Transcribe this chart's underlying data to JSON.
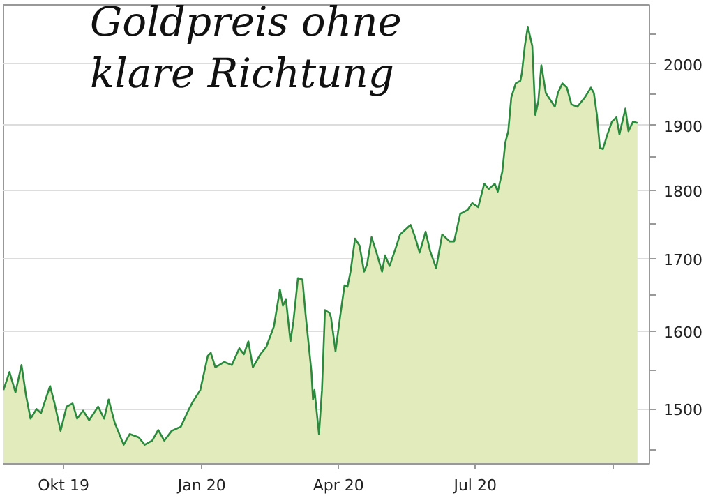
{
  "chart_data": {
    "type": "area",
    "title": "Goldpreis ohne klare Richtung",
    "log": true,
    "grid": "y",
    "xlim": [
      "2019-08-22",
      "2020-10-25"
    ],
    "ylim": [
      1433,
      2101
    ],
    "xticks": [
      {
        "value": "2019-10-01",
        "label": "Okt 19"
      },
      {
        "value": "2020-01-01",
        "label": "Jan 20"
      },
      {
        "value": "2020-04-01",
        "label": "Apr 20"
      },
      {
        "value": "2020-07-01",
        "label": "Jul 20"
      },
      {
        "value": "2020-10-01",
        "label": null
      }
    ],
    "yticks": [
      {
        "value": 1450,
        "label": null
      },
      1500,
      {
        "value": 1550,
        "label": null
      },
      1600,
      {
        "value": 1650,
        "label": null
      },
      1700,
      {
        "value": 1750,
        "label": null
      },
      1800,
      {
        "value": 1850,
        "label": null
      },
      1900,
      {
        "value": 1950,
        "label": null
      },
      2000,
      {
        "value": 2050,
        "label": null
      }
    ],
    "series": [
      {
        "color": "#2b8a3e",
        "x": [
          "2019-08-22",
          "2019-08-26",
          "2019-08-30",
          "2019-09-03",
          "2019-09-06",
          "2019-09-09",
          "2019-09-13",
          "2019-09-16",
          "2019-09-19",
          "2019-09-22",
          "2019-09-25",
          "2019-09-29",
          "2019-10-03",
          "2019-10-07",
          "2019-10-10",
          "2019-10-14",
          "2019-10-18",
          "2019-10-24",
          "2019-10-28",
          "2019-10-31",
          "2019-11-04",
          "2019-11-10",
          "2019-11-14",
          "2019-11-20",
          "2019-11-24",
          "2019-11-29",
          "2019-12-03",
          "2019-12-07",
          "2019-12-12",
          "2019-12-18",
          "2019-12-23",
          "2019-12-26",
          "2019-12-31",
          "2020-01-05",
          "2020-01-07",
          "2020-01-10",
          "2020-01-16",
          "2020-01-21",
          "2020-01-26",
          "2020-01-29",
          "2020-02-01",
          "2020-02-04",
          "2020-02-09",
          "2020-02-13",
          "2020-02-18",
          "2020-02-22",
          "2020-02-24",
          "2020-02-26",
          "2020-02-29",
          "2020-03-02",
          "2020-03-05",
          "2020-03-08",
          "2020-03-10",
          "2020-03-14",
          "2020-03-15",
          "2020-03-16",
          "2020-03-19",
          "2020-03-21",
          "2020-03-23",
          "2020-03-26",
          "2020-03-27",
          "2020-03-30",
          "2020-04-02",
          "2020-04-05",
          "2020-04-07",
          "2020-04-09",
          "2020-04-12",
          "2020-04-15",
          "2020-04-18",
          "2020-04-20",
          "2020-04-23",
          "2020-04-26",
          "2020-04-30",
          "2020-05-02",
          "2020-05-05",
          "2020-05-09",
          "2020-05-12",
          "2020-05-15",
          "2020-05-19",
          "2020-05-22",
          "2020-05-25",
          "2020-05-29",
          "2020-06-01",
          "2020-06-05",
          "2020-06-09",
          "2020-06-14",
          "2020-06-17",
          "2020-06-21",
          "2020-06-26",
          "2020-06-29",
          "2020-07-03",
          "2020-07-07",
          "2020-07-10",
          "2020-07-14",
          "2020-07-16",
          "2020-07-19",
          "2020-07-21",
          "2020-07-23",
          "2020-07-25",
          "2020-07-28",
          "2020-07-31",
          "2020-08-01",
          "2020-08-03",
          "2020-08-05",
          "2020-08-08",
          "2020-08-10",
          "2020-08-12",
          "2020-08-14",
          "2020-08-17",
          "2020-08-20",
          "2020-08-23",
          "2020-08-25",
          "2020-08-28",
          "2020-08-31",
          "2020-09-03",
          "2020-09-07",
          "2020-09-12",
          "2020-09-16",
          "2020-09-18",
          "2020-09-20",
          "2020-09-22",
          "2020-09-24",
          "2020-09-27",
          "2020-09-30",
          "2020-10-03",
          "2020-10-05",
          "2020-10-09",
          "2020-10-11",
          "2020-10-14",
          "2020-10-17"
        ],
        "values": [
          1524,
          1547,
          1521,
          1556,
          1517,
          1488,
          1500,
          1495,
          1512,
          1529,
          1507,
          1473,
          1503,
          1507,
          1488,
          1498,
          1486,
          1503,
          1488,
          1512,
          1483,
          1456,
          1469,
          1465,
          1456,
          1461,
          1474,
          1461,
          1473,
          1478,
          1498,
          1509,
          1524,
          1568,
          1572,
          1553,
          1560,
          1556,
          1578,
          1570,
          1587,
          1553,
          1570,
          1580,
          1607,
          1657,
          1635,
          1644,
          1587,
          1614,
          1673,
          1671,
          1625,
          1547,
          1512,
          1524,
          1469,
          1524,
          1629,
          1625,
          1619,
          1574,
          1619,
          1663,
          1661,
          1682,
          1729,
          1719,
          1682,
          1692,
          1731,
          1711,
          1682,
          1705,
          1690,
          1715,
          1735,
          1741,
          1749,
          1731,
          1709,
          1739,
          1711,
          1687,
          1735,
          1725,
          1725,
          1765,
          1771,
          1781,
          1775,
          1810,
          1802,
          1810,
          1798,
          1828,
          1873,
          1891,
          1945,
          1968,
          1972,
          1984,
          2030,
          2063,
          2030,
          1917,
          1939,
          1998,
          1952,
          1941,
          1930,
          1952,
          1968,
          1961,
          1934,
          1930,
          1945,
          1961,
          1952,
          1917,
          1865,
          1863,
          1886,
          1906,
          1913,
          1886,
          1927,
          1891,
          1906,
          1904
        ]
      }
    ]
  }
}
